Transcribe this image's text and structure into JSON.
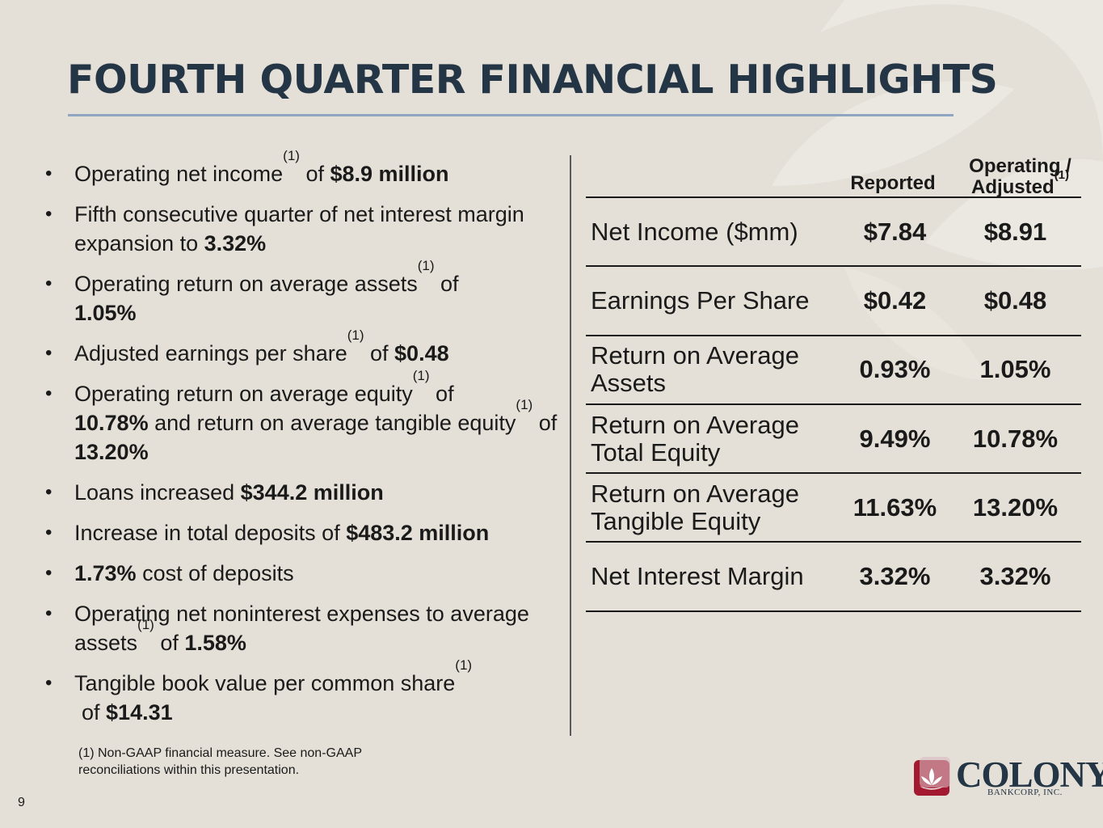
{
  "slide": {
    "title": "FOURTH QUARTER FINANCIAL HIGHLIGHTS",
    "page_number": "9",
    "footnote": "(1) Non-GAAP financial measure. See non-GAAP reconciliations within this presentation."
  },
  "bullets": [
    {
      "pre": "Operating net income",
      "sup": "(1)",
      "mid": " of ",
      "bold": "$8.9 million",
      "post": ""
    },
    {
      "pre": "Fifth consecutive quarter of net interest margin expansion to ",
      "bold": "3.32%"
    },
    {
      "pre": "Operating return on average assets",
      "sup": "(1)",
      "mid": " of ",
      "bold": "1.05%"
    },
    {
      "pre": "Adjusted earnings per share",
      "sup": "(1)",
      "mid": " of ",
      "bold": "$0.48"
    },
    {
      "pre": "Operating return on average equity",
      "sup": "(1)",
      "mid": " of ",
      "bold": "10.78%",
      "post": " and return on average tangible equity",
      "sup2": "(1)",
      "mid2": " of ",
      "bold2": "13.20%"
    },
    {
      "pre": "Loans increased ",
      "bold": "$344.2 million"
    },
    {
      "pre": "Increase in total deposits of ",
      "bold": "$483.2 million"
    },
    {
      "bold": "1.73%",
      "post": " cost of deposits"
    },
    {
      "pre": "Operating net noninterest expenses to average assets",
      "sup": "(1)",
      "mid": " of ",
      "bold": "1.58%"
    },
    {
      "pre": "Tangible book value per common share",
      "sup": "(1)",
      "mid": "of ",
      "bold": "$14.31"
    }
  ],
  "table": {
    "headers": {
      "reported": "Reported",
      "operating_line1": "Operating /",
      "operating_line2": "Adjusted",
      "operating_sup": "(1)"
    },
    "rows": [
      {
        "label": "Net Income ($mm)",
        "reported": "$7.84",
        "operating": "$8.91"
      },
      {
        "label": "Earnings Per Share",
        "reported": "$0.42",
        "operating": "$0.48"
      },
      {
        "label": "Return on Average Assets",
        "reported": "0.93%",
        "operating": "1.05%"
      },
      {
        "label": "Return on Average Total Equity",
        "reported": "9.49%",
        "operating": "10.78%"
      },
      {
        "label": "Return on Average Tangible Equity",
        "reported": "11.63%",
        "operating": "13.20%"
      },
      {
        "label": "Net Interest Margin",
        "reported": "3.32%",
        "operating": "3.32%"
      }
    ]
  },
  "logo": {
    "name": "COLONY",
    "subtitle": "BANKCORP, INC."
  },
  "colors": {
    "background": "#e4e0d7",
    "title": "#243546",
    "rule": "#8fa6c0",
    "logo_red": "#a3192f"
  }
}
